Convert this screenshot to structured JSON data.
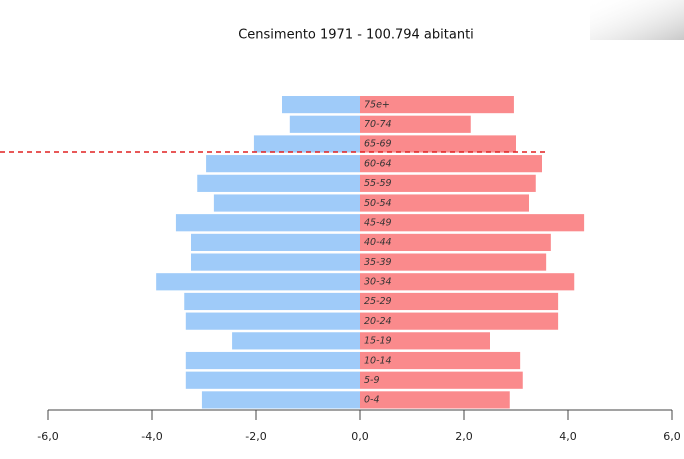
{
  "chart_data": {
    "type": "pyramid",
    "title": "Censimento 1971 - 100.794 abitanti",
    "categories": [
      "75e+",
      "70-74",
      "65-69",
      "60-64",
      "55-59",
      "50-54",
      "45-49",
      "40-44",
      "35-39",
      "30-34",
      "25-29",
      "20-24",
      "15-19",
      "10-14",
      "5-9",
      "0-4"
    ],
    "series": [
      {
        "color": "#9fcbf9",
        "values": [
          -1.5,
          -1.35,
          -2.04,
          -2.96,
          -3.13,
          -2.81,
          -3.54,
          -3.25,
          -3.25,
          -3.92,
          -3.38,
          -3.35,
          -2.46,
          -3.35,
          -3.35,
          -3.04
        ]
      },
      {
        "color": "#fa8a8c",
        "values": [
          2.96,
          2.13,
          3.0,
          3.5,
          3.38,
          3.25,
          4.31,
          3.67,
          3.58,
          4.12,
          3.81,
          3.81,
          2.5,
          3.08,
          3.13,
          2.88
        ]
      }
    ],
    "xlim": [
      -6,
      6
    ],
    "xticks": [
      {
        "value": -6,
        "label": "-6,0"
      },
      {
        "value": -4,
        "label": "-4,0"
      },
      {
        "value": -2,
        "label": "-2,0"
      },
      {
        "value": 0,
        "label": "0,0"
      },
      {
        "value": 2,
        "label": "2,0"
      },
      {
        "value": 4,
        "label": "4,0"
      },
      {
        "value": 6,
        "label": "6,0"
      }
    ]
  }
}
